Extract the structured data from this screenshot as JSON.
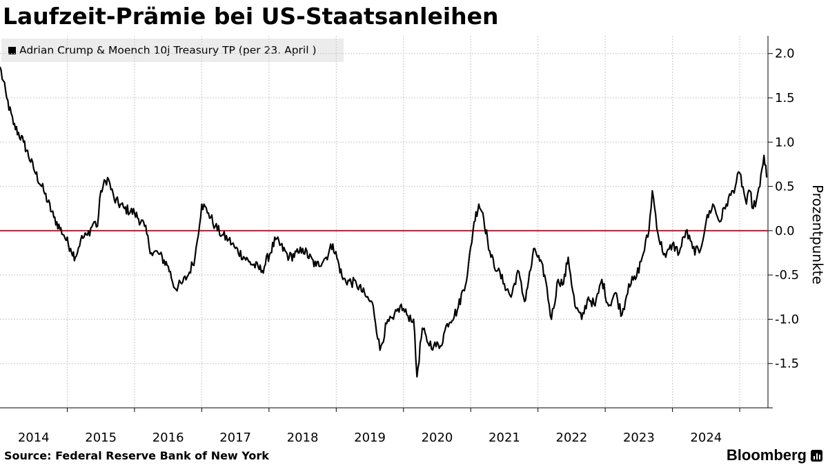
{
  "chart_data": {
    "type": "line",
    "title": "Laufzeit-Prämie bei US-Staatsanleihen",
    "legend": "Adrian Crump & Moench 10j Treasury TP (per 23. April )",
    "legend_position": "top-left",
    "ylabel": "Prozentpunkte",
    "xlabel": "",
    "source": "Source: Federal Reserve Bank of New York",
    "brand": "Bloomberg",
    "ylim": [
      -2.0,
      2.2
    ],
    "yticks": [
      2.0,
      1.5,
      1.0,
      0.5,
      0.0,
      -0.5,
      -1.0,
      -1.5
    ],
    "ytick_labels": [
      "2.0",
      "1.5",
      "1.0",
      "0.5",
      "0.0",
      "-0.5",
      "-1.0",
      "-1.5"
    ],
    "xlim": [
      2013.5,
      2024.92
    ],
    "xtick_labels": [
      "2014",
      "2015",
      "2016",
      "2017",
      "2018",
      "2019",
      "2020",
      "2021",
      "2022",
      "2023",
      "2024"
    ],
    "xtick_years": [
      2014,
      2015,
      2016,
      2017,
      2018,
      2019,
      2020,
      2021,
      2022,
      2023,
      2024
    ],
    "reference_line": {
      "value": 0.0,
      "color": "#c8102e"
    },
    "line_color": "#000000",
    "series": [
      {
        "name": "Adrian Crump & Moench 10j Treasury TP",
        "x": [
          2013.5,
          2013.6,
          2013.7,
          2013.85,
          2014.0,
          2014.15,
          2014.3,
          2014.45,
          2014.55,
          2014.62,
          2014.7,
          2014.8,
          2014.9,
          2014.95,
          2015.0,
          2015.1,
          2015.2,
          2015.35,
          2015.5,
          2015.65,
          2015.75,
          2015.85,
          2016.0,
          2016.1,
          2016.2,
          2016.3,
          2016.4,
          2016.5,
          2016.6,
          2016.7,
          2016.8,
          2016.9,
          2017.0,
          2017.2,
          2017.4,
          2017.6,
          2017.8,
          2017.95,
          2018.0,
          2018.2,
          2018.35,
          2018.45,
          2018.6,
          2018.8,
          2018.95,
          2019.05,
          2019.15,
          2019.25,
          2019.35,
          2019.45,
          2019.55,
          2019.65,
          2019.7,
          2019.78,
          2019.85,
          2019.95,
          2020.05,
          2020.15,
          2020.3,
          2020.45,
          2020.55,
          2020.62,
          2020.68,
          2020.75,
          2020.8,
          2020.9,
          2021.0,
          2021.1,
          2021.2,
          2021.3,
          2021.45,
          2021.6,
          2021.7,
          2021.8,
          2021.88,
          2021.95,
          2022.05,
          2022.15,
          2022.25,
          2022.35,
          2022.45,
          2022.55,
          2022.65,
          2022.75,
          2022.85,
          2022.95,
          2023.05,
          2023.15,
          2023.2,
          2023.3,
          2023.4,
          2023.5,
          2023.6,
          2023.7,
          2023.8,
          2023.9,
          2024.0,
          2024.1,
          2024.2,
          2024.3,
          2024.4,
          2024.5,
          2024.6,
          2024.65,
          2024.7,
          2024.75,
          2024.8,
          2024.86,
          2024.9
        ],
        "y": [
          1.85,
          1.5,
          1.2,
          1.0,
          0.7,
          0.45,
          0.15,
          -0.05,
          -0.2,
          -0.3,
          -0.1,
          -0.05,
          0.1,
          0.05,
          0.45,
          0.6,
          0.35,
          0.25,
          0.2,
          0.05,
          -0.25,
          -0.25,
          -0.4,
          -0.65,
          -0.6,
          -0.5,
          -0.3,
          0.3,
          0.2,
          0.05,
          -0.05,
          -0.1,
          -0.2,
          -0.35,
          -0.45,
          -0.1,
          -0.3,
          -0.25,
          -0.2,
          -0.4,
          -0.3,
          -0.15,
          -0.55,
          -0.6,
          -0.75,
          -0.85,
          -1.35,
          -1.05,
          -1.0,
          -0.85,
          -0.95,
          -1.0,
          -1.65,
          -1.1,
          -1.25,
          -1.3,
          -1.3,
          -1.05,
          -0.9,
          -0.5,
          0.1,
          0.3,
          0.2,
          -0.1,
          -0.3,
          -0.45,
          -0.6,
          -0.75,
          -0.45,
          -0.8,
          -0.2,
          -0.5,
          -1.0,
          -0.55,
          -0.6,
          -0.3,
          -0.85,
          -1.0,
          -0.75,
          -0.85,
          -0.55,
          -0.85,
          -0.7,
          -0.95,
          -0.6,
          -0.55,
          -0.3,
          0.0,
          0.45,
          -0.1,
          -0.3,
          -0.15,
          -0.25,
          0.0,
          -0.2,
          -0.25,
          0.1,
          0.3,
          0.1,
          0.3,
          0.45,
          0.65,
          0.3,
          0.45,
          0.25,
          0.35,
          0.5,
          0.85,
          0.6
        ]
      }
    ]
  }
}
